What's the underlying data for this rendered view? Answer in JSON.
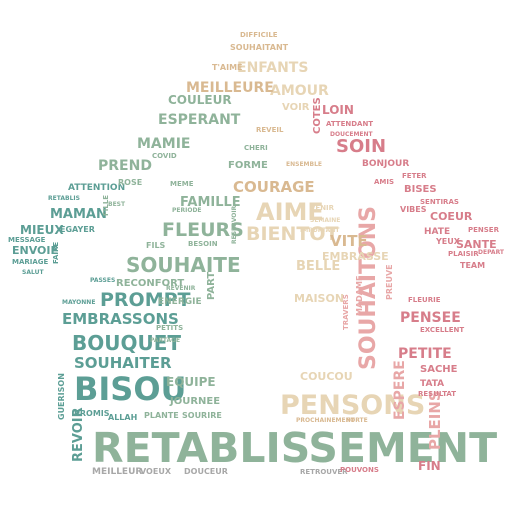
{
  "colors": {
    "teal": "#5c9e95",
    "sage": "#8fb39a",
    "tan": "#d9b991",
    "beige": "#e7d5b5",
    "rose": "#d77d8a",
    "pink": "#e8a7a7",
    "gray": "#a8a8a8",
    "brown": "#b6927a"
  },
  "words": {
    "retablissement": "RETABLISSEMENT",
    "bisou": "BISOU",
    "pensons": "PENSONS",
    "souhaitons": "SOUHAITONS",
    "souhaite": "SOUHAITE",
    "bouquet": "BOUQUET",
    "prompt": "PROMPT",
    "embrassons": "EMBRASSONS",
    "souhaiter": "SOUHAITER",
    "aime": "AIME",
    "bientot": "BIENTOT",
    "fleurs": "FLEURS",
    "courage": "COURAGE",
    "famille": "FAMILLE",
    "soin": "SOIN",
    "amour": "AMOUR",
    "enfants": "ENFANTS",
    "meilleure": "MEILLEURE",
    "couleur": "COULEUR",
    "esperant": "ESPERANT",
    "mamie": "MAMIE",
    "prend": "PREND",
    "maman": "MAMAN",
    "mieux": "MIEUX",
    "envoie": "ENVOIE",
    "attention": "ATTENTION",
    "egayer": "EGAYER",
    "rose": "ROSE",
    "vite": "VITE",
    "belle": "BELLE",
    "embrasse": "EMBRASSE",
    "maison": "MAISON",
    "pensee": "PENSEE",
    "petite": "PETITE",
    "coeur": "COEUR",
    "sante": "SANTE",
    "bonjour": "BONJOUR",
    "bises": "BISES",
    "espere": "ESPERE",
    "pleins": "PLEINS",
    "sache": "SACHE",
    "tata": "TATA",
    "fin": "FIN",
    "revoir": "REVOIR",
    "equipe": "EQUIPE",
    "journee": "JOURNEE",
    "coucou": "COUCOU",
    "energie": "ENERGIE",
    "reconfort": "RECONFORT",
    "part": "PART",
    "reveil": "REVEIL",
    "forme": "FORME",
    "loin": "LOIN",
    "voir": "VOIR",
    "cotes": "COTES",
    "souhaitant": "SOUHAITANT",
    "difficile": "DIFFICILE",
    "team": "TEAM",
    "yeux": "YEUX",
    "hate": "HATE",
    "plaisir": "PLAISIR",
    "vibes": "VIBES",
    "feter": "FETER",
    "message": "MESSAGE",
    "mariage": "MARIAGE",
    "salut": "SALUT",
    "faire": "FAIRE",
    "guerison": "GUERISON",
    "allah": "ALLAH",
    "plante": "PLANTE",
    "sourire": "SOURIRE",
    "meilleur": "MEILLEUR",
    "voeux": "VOEUX",
    "douceur": "DOUCEUR",
    "retrouver": "RETROUVER",
    "pouvons": "POUVONS",
    "promis": "PROMIS",
    "travers": "TRAVERS",
    "madame": "MADAME",
    "preuve": "PREUVE",
    "fleurie": "FLEURIE",
    "excellent": "EXCELLENT",
    "resultat": "RESULTAT",
    "covid": "COVID",
    "venir": "VENIR",
    "semaine": "SEMAINE",
    "important": "IMPORTANT",
    "meme": "MEME",
    "periode": "PERIODE",
    "reservoir": "RESERVOIR",
    "cheri": "CHERI",
    "sentiras": "SENTIRAS",
    "penser": "PENSER",
    "depart": "DEPART",
    "petits": "PETITS",
    "fils": "FILS",
    "besoin": "BESOIN",
    "partage": "PARTAGE",
    "passes": "PASSES",
    "mayonne": "MAYONNE",
    "revenir": "REVENIR",
    "fille": "FILLE",
    "best": "BEST",
    "retablis": "RETABLIS",
    "ensemble": "ENSEMBLE",
    "amis": "AMIS",
    "t_aime": "T'AIME",
    "attendant": "ATTENDANT",
    "doucement": "DOUCEMENT",
    "prochainement": "PROCHAINEMENT",
    "forte": "FORTE"
  }
}
